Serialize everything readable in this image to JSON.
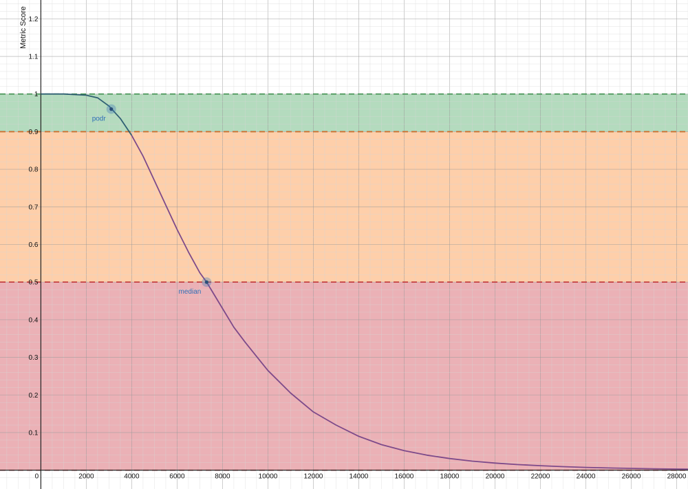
{
  "chart_data": {
    "type": "line",
    "title": "",
    "xlabel": "",
    "ylabel": "Metric Score",
    "xlim": [
      -1800,
      28500
    ],
    "ylim": [
      -0.05,
      1.25
    ],
    "grid": true,
    "x_ticks": [
      {
        "value": 0,
        "label": "0"
      },
      {
        "value": 2000,
        "label": "2000"
      },
      {
        "value": 4000,
        "label": "4000"
      },
      {
        "value": 6000,
        "label": "6000"
      },
      {
        "value": 8000,
        "label": "8000"
      },
      {
        "value": 10000,
        "label": "10000"
      },
      {
        "value": 12000,
        "label": "12000"
      },
      {
        "value": 14000,
        "label": "14000"
      },
      {
        "value": 16000,
        "label": "16000"
      },
      {
        "value": 18000,
        "label": "18000"
      },
      {
        "value": 20000,
        "label": "20000"
      },
      {
        "value": 22000,
        "label": "22000"
      },
      {
        "value": 24000,
        "label": "24000"
      },
      {
        "value": 26000,
        "label": "26000"
      },
      {
        "value": 28000,
        "label": "28000"
      }
    ],
    "y_ticks": [
      {
        "value": 0.1,
        "label": "0.1"
      },
      {
        "value": 0.2,
        "label": "0.2"
      },
      {
        "value": 0.3,
        "label": "0.3"
      },
      {
        "value": 0.4,
        "label": "0.4"
      },
      {
        "value": 0.5,
        "label": "0.5"
      },
      {
        "value": 0.6,
        "label": "0.6"
      },
      {
        "value": 0.7,
        "label": "0.7"
      },
      {
        "value": 0.8,
        "label": "0.8"
      },
      {
        "value": 0.9,
        "label": "0.9"
      },
      {
        "value": 1.0,
        "label": "1"
      },
      {
        "value": 1.1,
        "label": "1.1"
      },
      {
        "value": 1.2,
        "label": "1.2"
      }
    ],
    "bands": [
      {
        "from": 0.9,
        "to": 1.0,
        "fill": "#8cc79b",
        "line": "#3f8f4f"
      },
      {
        "from": 0.5,
        "to": 0.9,
        "fill": "#fdb67d",
        "line": "#d86a2a"
      },
      {
        "from": 0.0,
        "to": 0.5,
        "fill": "#e1878f",
        "line": "#c0393f"
      }
    ],
    "curve": {
      "x": [
        0,
        1000,
        2000,
        2500,
        3000,
        3500,
        4000,
        4500,
        5000,
        5500,
        6000,
        6500,
        7000,
        7300,
        7500,
        8000,
        8500,
        9000,
        10000,
        11000,
        12000,
        13000,
        14000,
        15000,
        16000,
        17000,
        18000,
        19000,
        20000,
        21000,
        22000,
        23000,
        24000,
        25000,
        26000,
        27000,
        28000,
        28500
      ],
      "y": [
        1.0,
        1.0,
        0.997,
        0.99,
        0.968,
        0.935,
        0.89,
        0.835,
        0.77,
        0.705,
        0.64,
        0.58,
        0.525,
        0.5,
        0.48,
        0.43,
        0.38,
        0.34,
        0.265,
        0.205,
        0.155,
        0.12,
        0.09,
        0.068,
        0.052,
        0.04,
        0.031,
        0.024,
        0.019,
        0.015,
        0.012,
        0.0095,
        0.0075,
        0.006,
        0.0048,
        0.0038,
        0.003,
        0.0027
      ],
      "color_upper": "#2f5f73",
      "color_lower": "#7d4a8a"
    },
    "points": [
      {
        "name": "podr",
        "x": 3100,
        "y": 0.96
      },
      {
        "name": "median",
        "x": 7300,
        "y": 0.5
      }
    ]
  }
}
